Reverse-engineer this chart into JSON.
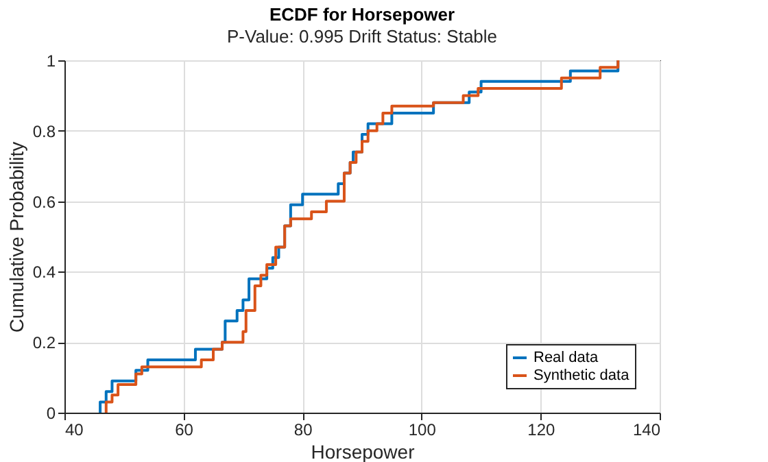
{
  "chart_data": {
    "type": "step",
    "title": "ECDF for Horsepower",
    "subtitle": "P-Value: 0.995 Drift Status: Stable",
    "xlabel": "Horsepower",
    "ylabel": "Cumulative Probability",
    "xlim": [
      40,
      140
    ],
    "xticks": [
      40,
      60,
      80,
      100,
      120,
      140
    ],
    "ylim": [
      0,
      1
    ],
    "yticks": [
      0,
      0.2,
      0.4,
      0.6,
      0.8,
      1
    ],
    "grid": true,
    "legend": "bottom right",
    "line_style": "solid",
    "series": [
      {
        "name": "Real data",
        "color": "#0072bd",
        "x": [
          46,
          46,
          47,
          48,
          52,
          54,
          62,
          66.5,
          67,
          69,
          70,
          71,
          74,
          75,
          76,
          77,
          78,
          80,
          86,
          87,
          88,
          88.5,
          90,
          91,
          95,
          102,
          108,
          110,
          125,
          133
        ],
        "values": [
          0,
          0.03,
          0.06,
          0.09,
          0.12,
          0.15,
          0.18,
          0.2,
          0.26,
          0.29,
          0.32,
          0.38,
          0.41,
          0.44,
          0.47,
          0.53,
          0.59,
          0.62,
          0.65,
          0.68,
          0.71,
          0.74,
          0.79,
          0.82,
          0.85,
          0.88,
          0.91,
          0.94,
          0.97,
          1
        ]
      },
      {
        "name": "Synthetic data",
        "color": "#d95319",
        "x": [
          47,
          47,
          48,
          49,
          52,
          53,
          63,
          65,
          66.5,
          70,
          70.5,
          72,
          73,
          74,
          75.5,
          77,
          78,
          81.5,
          84,
          87,
          88,
          89,
          90,
          91,
          92.5,
          93.5,
          95,
          102,
          107,
          109.5,
          123.5,
          130,
          133
        ],
        "values": [
          0,
          0.03,
          0.05,
          0.08,
          0.11,
          0.13,
          0.15,
          0.18,
          0.2,
          0.23,
          0.29,
          0.36,
          0.39,
          0.42,
          0.47,
          0.53,
          0.55,
          0.57,
          0.6,
          0.68,
          0.71,
          0.74,
          0.77,
          0.8,
          0.82,
          0.85,
          0.87,
          0.88,
          0.9,
          0.92,
          0.95,
          0.98,
          1
        ]
      }
    ]
  }
}
